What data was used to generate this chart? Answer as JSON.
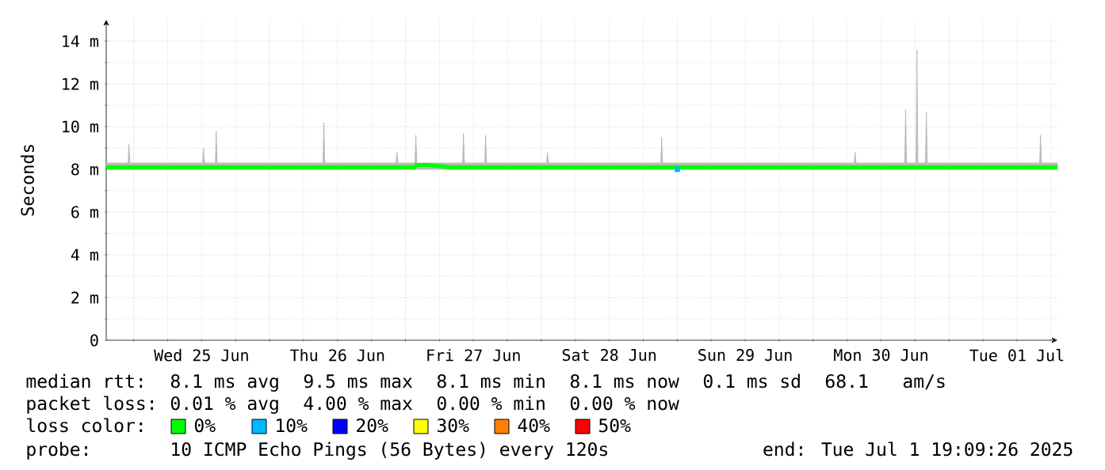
{
  "chart_data": {
    "type": "line",
    "ylabel": "Seconds",
    "legend_title": "loss color:",
    "legend": "bottom",
    "grid": true,
    "marker": "none",
    "line_style": "solid",
    "xlim": [
      "2025-06-24T19:09",
      "2025-07-01T19:09"
    ],
    "xticks": [
      {
        "value": "2025-06-25T00:00",
        "label": null
      },
      {
        "value": "2025-06-25T06:00",
        "label": null
      },
      {
        "value": "2025-06-25T12:00",
        "label": "Wed 25 Jun"
      },
      {
        "value": "2025-06-25T18:00",
        "label": null
      },
      {
        "value": "2025-06-26T00:00",
        "label": null
      },
      {
        "value": "2025-06-26T06:00",
        "label": null
      },
      {
        "value": "2025-06-26T12:00",
        "label": "Thu 26 Jun"
      },
      {
        "value": "2025-06-26T18:00",
        "label": null
      },
      {
        "value": "2025-06-27T00:00",
        "label": null
      },
      {
        "value": "2025-06-27T06:00",
        "label": null
      },
      {
        "value": "2025-06-27T12:00",
        "label": "Fri 27 Jun"
      },
      {
        "value": "2025-06-27T18:00",
        "label": null
      },
      {
        "value": "2025-06-28T00:00",
        "label": null
      },
      {
        "value": "2025-06-28T06:00",
        "label": null
      },
      {
        "value": "2025-06-28T12:00",
        "label": "Sat 28 Jun"
      },
      {
        "value": "2025-06-28T18:00",
        "label": null
      },
      {
        "value": "2025-06-29T00:00",
        "label": null
      },
      {
        "value": "2025-06-29T06:00",
        "label": null
      },
      {
        "value": "2025-06-29T12:00",
        "label": "Sun 29 Jun"
      },
      {
        "value": "2025-06-29T18:00",
        "label": null
      },
      {
        "value": "2025-06-30T00:00",
        "label": null
      },
      {
        "value": "2025-06-30T06:00",
        "label": null
      },
      {
        "value": "2025-06-30T12:00",
        "label": "Mon 30 Jun"
      },
      {
        "value": "2025-06-30T18:00",
        "label": null
      },
      {
        "value": "2025-07-01T00:00",
        "label": null
      },
      {
        "value": "2025-07-01T06:00",
        "label": null
      },
      {
        "value": "2025-07-01T12:00",
        "label": "Tue 01 Jul"
      },
      {
        "value": "2025-07-01T18:00",
        "label": null
      }
    ],
    "ylim": [
      0,
      15
    ],
    "yticks": [
      0,
      {
        "value": 1,
        "label": null
      },
      {
        "value": 2,
        "label": "2 m"
      },
      {
        "value": 3,
        "label": null
      },
      {
        "value": 4,
        "label": "4 m"
      },
      {
        "value": 5,
        "label": null
      },
      {
        "value": 6,
        "label": "6 m"
      },
      {
        "value": 7,
        "label": null
      },
      {
        "value": 8,
        "label": "8 m"
      },
      {
        "value": 9,
        "label": null
      },
      {
        "value": 10,
        "label": "10 m"
      },
      {
        "value": 11,
        "label": null
      },
      {
        "value": 12,
        "label": "12 m"
      },
      {
        "value": 13,
        "label": null
      },
      {
        "value": 14,
        "label": "14 m"
      }
    ],
    "series": [
      {
        "name": "0%",
        "color": "#00ff00",
        "x": [
          "2025-06-24T19:09",
          "2025-06-24T20:00",
          "2025-06-24T23:00",
          "2025-06-24T23:10",
          "2025-06-24T23:20",
          "2025-06-25T00:00",
          "2025-06-25T04:00",
          "2025-06-25T08:00",
          "2025-06-25T12:00",
          "2025-06-25T12:10",
          "2025-06-25T12:20",
          "2025-06-25T12:30",
          "2025-06-25T14:25",
          "2025-06-25T14:35",
          "2025-06-25T14:45",
          "2025-06-25T16:00",
          "2025-06-25T20:00",
          "2025-06-26T00:00",
          "2025-06-26T04:00",
          "2025-06-26T08:00",
          "2025-06-26T09:25",
          "2025-06-26T09:35",
          "2025-06-26T09:45",
          "2025-06-26T12:00",
          "2025-06-26T16:00",
          "2025-06-26T20:00",
          "2025-06-26T22:20",
          "2025-06-26T22:30",
          "2025-06-26T22:40",
          "2025-06-27T00:00",
          "2025-06-27T01:40",
          "2025-06-27T01:50",
          "2025-06-27T02:00",
          "2025-06-27T04:00",
          "2025-06-27T08:00",
          "2025-06-27T10:05",
          "2025-06-27T10:15",
          "2025-06-27T10:25",
          "2025-06-27T12:00",
          "2025-06-27T14:00",
          "2025-06-27T14:10",
          "2025-06-27T14:20",
          "2025-06-27T16:00",
          "2025-06-27T20:00",
          "2025-06-28T00:00",
          "2025-06-28T00:55",
          "2025-06-28T01:05",
          "2025-06-28T01:15",
          "2025-06-28T04:00",
          "2025-06-28T08:00",
          "2025-06-28T12:00",
          "2025-06-28T16:00",
          "2025-06-28T20:00",
          "2025-06-28T21:05",
          "2025-06-28T21:15",
          "2025-06-28T21:25",
          "2025-06-29T00:00",
          "2025-06-29T04:00",
          "2025-06-29T08:00",
          "2025-06-29T12:00",
          "2025-06-29T16:00",
          "2025-06-29T20:00",
          "2025-06-30T00:00",
          "2025-06-30T04:00",
          "2025-06-30T07:15",
          "2025-06-30T07:25",
          "2025-06-30T07:35",
          "2025-06-30T08:00",
          "2025-06-30T12:00",
          "2025-06-30T16:00",
          "2025-06-30T16:10",
          "2025-06-30T16:20",
          "2025-06-30T16:30",
          "2025-06-30T18:10",
          "2025-06-30T18:20",
          "2025-06-30T18:30",
          "2025-06-30T19:50",
          "2025-06-30T20:00",
          "2025-06-30T20:10",
          "2025-07-01T00:00",
          "2025-07-01T04:00",
          "2025-07-01T08:00",
          "2025-07-01T12:00",
          "2025-07-01T16:00",
          "2025-07-01T16:10",
          "2025-07-01T16:20",
          "2025-07-01T19:09"
        ],
        "values": [
          8.1,
          8.1,
          8.1,
          8.1,
          8.1,
          8.1,
          8.1,
          8.1,
          8.1,
          8.1,
          8.1,
          8.1,
          8.1,
          8.1,
          8.1,
          8.1,
          8.1,
          8.1,
          8.1,
          8.1,
          8.1,
          8.1,
          8.1,
          8.1,
          8.1,
          8.1,
          8.1,
          8.1,
          8.1,
          8.1,
          8.1,
          8.2,
          8.2,
          8.2,
          8.1,
          8.1,
          8.1,
          8.1,
          8.1,
          8.1,
          8.1,
          8.1,
          8.1,
          8.1,
          8.1,
          8.1,
          8.1,
          8.1,
          8.1,
          8.1,
          8.1,
          8.1,
          8.1,
          8.1,
          8.1,
          8.1,
          8.1,
          8.1,
          8.1,
          8.1,
          8.1,
          8.1,
          8.1,
          8.1,
          8.1,
          8.1,
          8.1,
          8.1,
          8.1,
          8.1,
          8.1,
          8.1,
          8.1,
          8.1,
          8.1,
          8.1,
          8.1,
          8.1,
          8.1,
          8.1,
          8.1,
          8.1,
          8.1,
          8.1,
          8.1,
          8.1,
          8.1
        ],
        "lower": [
          8,
          8,
          8,
          8,
          8,
          8,
          8,
          8,
          8,
          8,
          8,
          8,
          8,
          8,
          8,
          8,
          8,
          8,
          8,
          8,
          8,
          8,
          8,
          8,
          8,
          8,
          8,
          8,
          8,
          8,
          8,
          8,
          8,
          8,
          8,
          8,
          8,
          8,
          8,
          8,
          8,
          8,
          8,
          8,
          8,
          8,
          8,
          8,
          8,
          8,
          8,
          8,
          8,
          8,
          8,
          8,
          8,
          8,
          8,
          8,
          8,
          8,
          8,
          8,
          8,
          8,
          8,
          8,
          8,
          8,
          8,
          8,
          8,
          8,
          8,
          8,
          8,
          8,
          8,
          8,
          8,
          8,
          8,
          8,
          8,
          8,
          8
        ],
        "upper": [
          8.3,
          8.3,
          8.3,
          9.2,
          8.3,
          8.3,
          8.3,
          8.3,
          8.3,
          8.3,
          9.0,
          8.3,
          8.3,
          9.8,
          8.3,
          8.3,
          8.3,
          8.3,
          8.3,
          8.3,
          8.3,
          10.2,
          8.3,
          8.3,
          8.3,
          8.3,
          8.3,
          8.8,
          8.3,
          8.3,
          8.3,
          9.6,
          8.3,
          8.3,
          8.3,
          8.3,
          9.7,
          8.3,
          8.3,
          8.3,
          9.6,
          8.3,
          8.3,
          8.3,
          8.3,
          8.3,
          8.8,
          8.3,
          8.3,
          8.3,
          8.3,
          8.3,
          8.3,
          8.3,
          9.5,
          8.3,
          8.3,
          8.3,
          8.3,
          8.3,
          8.3,
          8.3,
          8.3,
          8.3,
          8.3,
          8.8,
          8.3,
          8.3,
          8.3,
          8.3,
          8.3,
          10.8,
          8.3,
          8.3,
          13.6,
          8.3,
          8.3,
          10.7,
          8.3,
          8.3,
          8.3,
          8.3,
          8.3,
          8.3,
          9.6,
          8.3,
          8.3
        ]
      },
      {
        "name": "10%",
        "color": "#00b8ff",
        "type": "scatter",
        "marker": "square",
        "x": [
          "2025-06-29T00:00"
        ],
        "values": [
          8.0
        ]
      },
      {
        "name": "20%",
        "color": "#0000ff"
      },
      {
        "name": "30%",
        "color": "#ffff00"
      },
      {
        "name": "40%",
        "color": "#ff8000"
      },
      {
        "name": "50%",
        "color": "#ff0000"
      }
    ],
    "annotations": [
      "median rtt:",
      "8.1 ms avg",
      "9.5 ms max",
      "8.1 ms min",
      "8.1 ms now",
      "0.1 ms sd",
      "68.1",
      "am/s",
      "packet loss:",
      "0.01 % avg",
      "4.00 % max",
      "0.00 % min",
      "0.00 % now",
      "probe:",
      "10 ICMP Echo Pings (56 Bytes) every 120s",
      "end: Tue Jul  1 19:09:26 2025"
    ]
  }
}
